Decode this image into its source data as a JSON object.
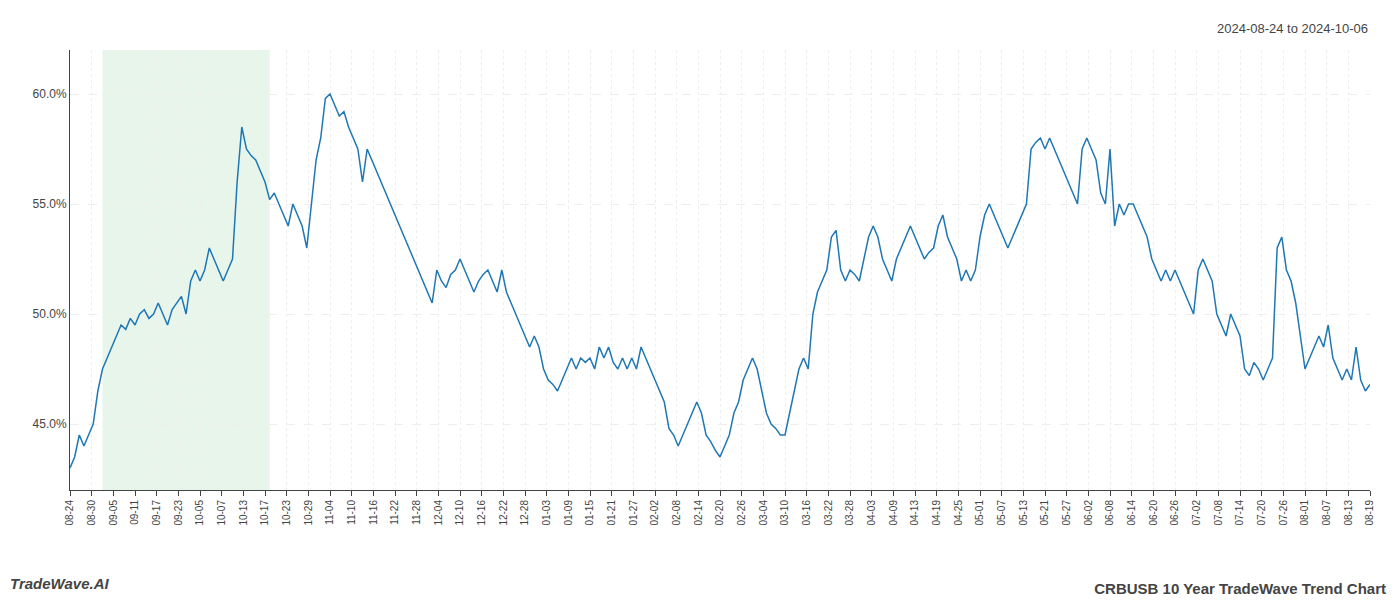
{
  "chart_data": {
    "type": "line",
    "title": "CRBUSB 10 Year TradeWave Trend Chart",
    "subtitle": "2024-08-24 to 2024-10-06",
    "annotations": [
      {
        "text": "TradeWave.AI"
      }
    ],
    "values": [
      43.0,
      43.5,
      44.5,
      44.0,
      44.5,
      45.0,
      46.5,
      47.5,
      48.0,
      48.5,
      49.0,
      49.5,
      49.3,
      49.8,
      49.5,
      50.0,
      50.2,
      49.8,
      50.0,
      50.5,
      50.0,
      49.5,
      50.2,
      50.5,
      50.8,
      50.0,
      51.5,
      52.0,
      51.5,
      52.0,
      53.0,
      52.5,
      52.0,
      51.5,
      52.0,
      52.5,
      56.0,
      58.5,
      57.5,
      57.2,
      57.0,
      56.5,
      56.0,
      55.2,
      55.5,
      55.0,
      54.5,
      54.0,
      55.0,
      54.5,
      54.0,
      53.0,
      55.0,
      57.0,
      58.0,
      59.8,
      60.0,
      59.5,
      59.0,
      59.2,
      58.5,
      58.0,
      57.5,
      56.0,
      57.5,
      57.0,
      56.5,
      56.0,
      55.5,
      55.0,
      54.5,
      54.0,
      53.5,
      53.0,
      52.5,
      52.0,
      51.5,
      51.0,
      50.5,
      52.0,
      51.5,
      51.2,
      51.8,
      52.0,
      52.5,
      52.0,
      51.5,
      51.0,
      51.5,
      51.8,
      52.0,
      51.5,
      51.0,
      52.0,
      51.0,
      50.5,
      50.0,
      49.5,
      49.0,
      48.5,
      49.0,
      48.5,
      47.5,
      47.0,
      46.8,
      46.5,
      47.0,
      47.5,
      48.0,
      47.5,
      48.0,
      47.8,
      48.0,
      47.5,
      48.5,
      48.0,
      48.5,
      47.8,
      47.5,
      48.0,
      47.5,
      48.0,
      47.5,
      48.5,
      48.0,
      47.5,
      47.0,
      46.5,
      46.0,
      44.8,
      44.5,
      44.0,
      44.5,
      45.0,
      45.5,
      46.0,
      45.5,
      44.5,
      44.2,
      43.8,
      43.5,
      44.0,
      44.5,
      45.5,
      46.0,
      47.0,
      47.5,
      48.0,
      47.5,
      46.5,
      45.5,
      45.0,
      44.8,
      44.5,
      44.5,
      45.5,
      46.5,
      47.5,
      48.0,
      47.5,
      50.0,
      51.0,
      51.5,
      52.0,
      53.5,
      53.8,
      52.0,
      51.5,
      52.0,
      51.8,
      51.5,
      52.5,
      53.5,
      54.0,
      53.5,
      52.5,
      52.0,
      51.5,
      52.5,
      53.0,
      53.5,
      54.0,
      53.5,
      53.0,
      52.5,
      52.8,
      53.0,
      54.0,
      54.5,
      53.5,
      53.0,
      52.5,
      51.5,
      52.0,
      51.5,
      52.0,
      53.5,
      54.5,
      55.0,
      54.5,
      54.0,
      53.5,
      53.0,
      53.5,
      54.0,
      54.5,
      55.0,
      57.5,
      57.8,
      58.0,
      57.5,
      58.0,
      57.5,
      57.0,
      56.5,
      56.0,
      55.5,
      55.0,
      57.5,
      58.0,
      57.5,
      57.0,
      55.5,
      55.0,
      57.5,
      54.0,
      55.0,
      54.5,
      55.0,
      55.0,
      54.5,
      54.0,
      53.5,
      52.5,
      52.0,
      51.5,
      52.0,
      51.5,
      52.0,
      51.5,
      51.0,
      50.5,
      50.0,
      52.0,
      52.5,
      52.0,
      51.5,
      50.0,
      49.5,
      49.0,
      50.0,
      49.5,
      49.0,
      47.5,
      47.2,
      47.8,
      47.5,
      47.0,
      47.5,
      48.0,
      53.0,
      53.5,
      52.0,
      51.5,
      50.5,
      49.0,
      47.5,
      48.0,
      48.5,
      49.0,
      48.5,
      49.5,
      48.0,
      47.5,
      47.0,
      47.5,
      47.0,
      48.5,
      47.0,
      46.5,
      46.8
    ],
    "xlim": [
      0,
      280
    ],
    "xticks": [
      {
        "value": 0,
        "label": "08-24"
      },
      {
        "value": 4.666666666666667,
        "label": "08-30"
      },
      {
        "value": 9.333333333333334,
        "label": "09-05"
      },
      {
        "value": 14,
        "label": "09-11"
      },
      {
        "value": 18.666666666666668,
        "label": "09-17"
      },
      {
        "value": 23.333333333333336,
        "label": "09-23"
      },
      {
        "value": 28,
        "label": "10-05"
      },
      {
        "value": 32.66666666666667,
        "label": "10-07"
      },
      {
        "value": 37.333333333333336,
        "label": "10-13"
      },
      {
        "value": 42,
        "label": "10-17"
      },
      {
        "value": 46.66666666666667,
        "label": "10-23"
      },
      {
        "value": 51.333333333333336,
        "label": "10-29"
      },
      {
        "value": 56,
        "label": "11-04"
      },
      {
        "value": 60.66666666666667,
        "label": "11-10"
      },
      {
        "value": 65.33333333333334,
        "label": "11-16"
      },
      {
        "value": 70,
        "label": "11-22"
      },
      {
        "value": 74.66666666666667,
        "label": "11-28"
      },
      {
        "value": 79.33333333333334,
        "label": "12-04"
      },
      {
        "value": 84,
        "label": "12-10"
      },
      {
        "value": 88.66666666666667,
        "label": "12-16"
      },
      {
        "value": 93.33333333333334,
        "label": "12-22"
      },
      {
        "value": 98,
        "label": "12-28"
      },
      {
        "value": 102.66666666666667,
        "label": "01-03"
      },
      {
        "value": 107.33333333333334,
        "label": "01-09"
      },
      {
        "value": 112,
        "label": "01-15"
      },
      {
        "value": 116.66666666666667,
        "label": "01-21"
      },
      {
        "value": 121.33333333333334,
        "label": "01-27"
      },
      {
        "value": 126,
        "label": "02-02"
      },
      {
        "value": 130.66666666666669,
        "label": "02-08"
      },
      {
        "value": 135.33333333333334,
        "label": "02-14"
      },
      {
        "value": 140,
        "label": "02-20"
      },
      {
        "value": 144.66666666666669,
        "label": "02-26"
      },
      {
        "value": 149.33333333333334,
        "label": "03-04"
      },
      {
        "value": 154,
        "label": "03-10"
      },
      {
        "value": 158.66666666666669,
        "label": "03-16"
      },
      {
        "value": 163.33333333333334,
        "label": "03-22"
      },
      {
        "value": 168,
        "label": "03-28"
      },
      {
        "value": 172.66666666666669,
        "label": "04-03"
      },
      {
        "value": 177.33333333333334,
        "label": "04-09"
      },
      {
        "value": 182,
        "label": "04-13"
      },
      {
        "value": 186.66666666666669,
        "label": "04-19"
      },
      {
        "value": 191.33333333333334,
        "label": "04-25"
      },
      {
        "value": 196,
        "label": "05-01"
      },
      {
        "value": 200.66666666666669,
        "label": "05-07"
      },
      {
        "value": 205.33333333333334,
        "label": "05-13"
      },
      {
        "value": 210,
        "label": "05-21"
      },
      {
        "value": 214.66666666666669,
        "label": "05-27"
      },
      {
        "value": 219.33333333333334,
        "label": "06-02"
      },
      {
        "value": 224,
        "label": "06-08"
      },
      {
        "value": 228.66666666666669,
        "label": "06-14"
      },
      {
        "value": 233.33333333333334,
        "label": "06-20"
      },
      {
        "value": 238,
        "label": "06-26"
      },
      {
        "value": 242.66666666666669,
        "label": "07-02"
      },
      {
        "value": 247.33333333333334,
        "label": "07-08"
      },
      {
        "value": 252,
        "label": "07-14"
      },
      {
        "value": 256.6666666666667,
        "label": "07-20"
      },
      {
        "value": 261.33333333333337,
        "label": "07-26"
      },
      {
        "value": 266,
        "label": "08-01"
      },
      {
        "value": 270.6666666666667,
        "label": "08-07"
      },
      {
        "value": 275.33333333333337,
        "label": "08-13"
      },
      {
        "value": 280,
        "label": "08-19"
      }
    ],
    "ylim": [
      42.0,
      62.0
    ],
    "yticks": [
      {
        "value": 45.0,
        "label": "45.0%"
      },
      {
        "value": 50.0,
        "label": "50.0%"
      },
      {
        "value": 55.0,
        "label": "55.0%"
      },
      {
        "value": 60.0,
        "label": "60.0%"
      }
    ],
    "shade": [
      7,
      43
    ],
    "shade_color": "#d4edda",
    "grid": true
  }
}
